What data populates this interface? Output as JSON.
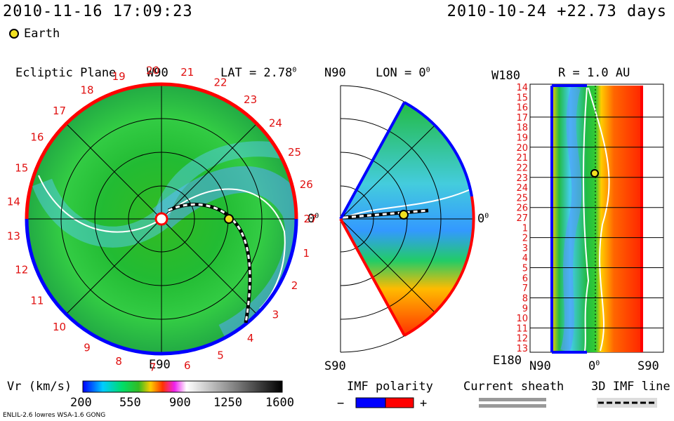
{
  "header": {
    "datetime": "2010-11-16 17:09:23",
    "ref": "2010-10-24 +22.73 days"
  },
  "legend": {
    "earth_label": "Earth",
    "earth_color": "#f0e020"
  },
  "ecliptic": {
    "title": "Ecliptic Plane",
    "lat_label": "LAT = 2.78",
    "degree_mark": "0",
    "top_label": "W90",
    "bottom_label": "E90",
    "right_label": "0",
    "day_numbers": [
      "19",
      "20",
      "21",
      "22",
      "23",
      "24",
      "25",
      "26",
      "27",
      "1",
      "2",
      "3",
      "4",
      "5",
      "6",
      "7",
      "8",
      "9",
      "10",
      "11",
      "12",
      "13",
      "14",
      "15",
      "16",
      "17",
      "18"
    ]
  },
  "meridional": {
    "top_left": "N90",
    "lon_label": "LON = 0",
    "bottom_left": "S90",
    "right_label": "0"
  },
  "radial": {
    "top_left": "W180",
    "r_label": "R = 1.0 AU",
    "bottom_left": "E180",
    "bottom_axis": [
      "N90",
      "0",
      "S90"
    ],
    "rows": [
      "14",
      "15",
      "16",
      "17",
      "18",
      "19",
      "20",
      "21",
      "22",
      "23",
      "24",
      "25",
      "26",
      "27",
      "1",
      "2",
      "3",
      "4",
      "5",
      "6",
      "7",
      "8",
      "9",
      "10",
      "11",
      "12",
      "13"
    ]
  },
  "colorbar": {
    "label": "Vr (km/s)",
    "ticks": [
      "200",
      "550",
      "900",
      "1250",
      "1600"
    ],
    "stops": [
      "#0000ff",
      "#00ccff",
      "#00dd66",
      "#33bb22",
      "#ffcc00",
      "#ff3300",
      "#ee22ee",
      "#ffffff",
      "#888888",
      "#000000"
    ]
  },
  "imf": {
    "title": "IMF polarity",
    "minus": "−",
    "plus": "+",
    "neg_color": "#0000ff",
    "pos_color": "#ff0000"
  },
  "sheath": {
    "title": "Current sheath"
  },
  "imf3d": {
    "title": "3D IMF line"
  },
  "footer": {
    "models": "ENLIL-2.6 lowres WSA-1.6 GONG"
  }
}
